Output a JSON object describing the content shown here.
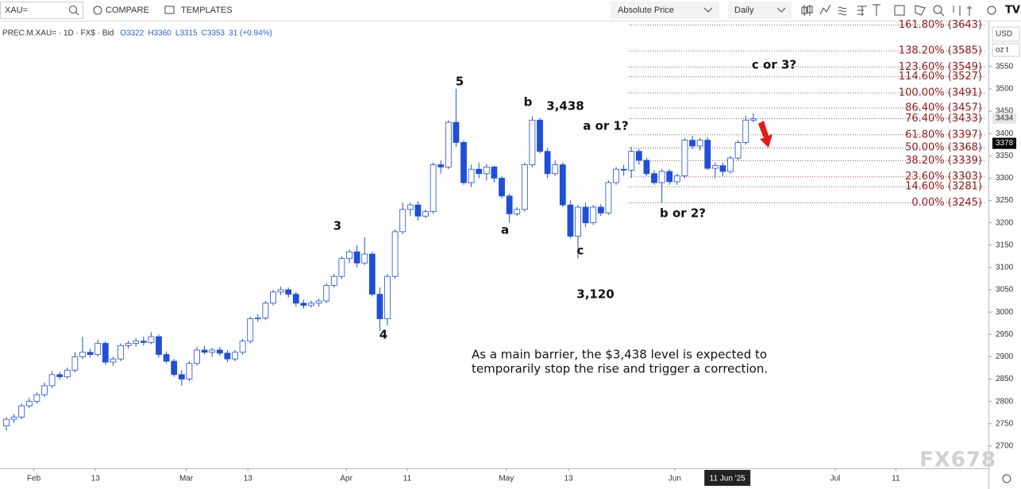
{
  "toolbar": {
    "search": "XAU=",
    "compare": "COMPARE",
    "templates": "TEMPLATES",
    "price_mode": "Absolute Price",
    "interval": "Daily"
  },
  "chart_data": {
    "type": "candlestick",
    "legend": {
      "symbol": "PREC.M.XAU= · 1D · FX$ · Bid",
      "values": [
        "O3322",
        "H3360",
        "L3315",
        "C3353",
        "31 (+0.94%)"
      ]
    },
    "currency": "USD",
    "unit": "oz t",
    "up_color": "#ffffff",
    "down_color": "#1f4fd6",
    "outline_color": "#1f4fd6",
    "xlim": [
      -0.833,
      128.85
    ],
    "ylim": [
      2650,
      3651
    ],
    "yticks": [
      2700,
      2750,
      2800,
      2850,
      2900,
      2950,
      3000,
      3050,
      3100,
      3150,
      3200,
      3250,
      3300,
      3350,
      3400,
      3450,
      3500,
      3550
    ],
    "xticks": [
      {
        "value": 3.6,
        "label": "Feb"
      },
      {
        "value": 11.7,
        "label": "13"
      },
      {
        "value": 23.6,
        "label": "Mar"
      },
      {
        "value": 31.7,
        "label": "13"
      },
      {
        "value": 44.6,
        "label": "Apr"
      },
      {
        "value": 52.6,
        "label": "11"
      },
      {
        "value": 65.6,
        "label": "May"
      },
      {
        "value": 73.75,
        "label": "13"
      },
      {
        "value": 87.7,
        "label": "Jun"
      },
      {
        "value": 108.75,
        "label": "Jul"
      },
      {
        "value": 116.7,
        "label": "11"
      }
    ],
    "x_cursor": {
      "value": 94.6,
      "label": "11 Jun '25"
    },
    "price_markers": [
      3434,
      3378
    ],
    "ohlc": [
      [
        2745,
        2765,
        2735,
        2760
      ],
      [
        2760,
        2772,
        2752,
        2765
      ],
      [
        2765,
        2795,
        2760,
        2790
      ],
      [
        2790,
        2808,
        2785,
        2800
      ],
      [
        2800,
        2820,
        2795,
        2815
      ],
      [
        2815,
        2842,
        2810,
        2835
      ],
      [
        2835,
        2868,
        2830,
        2860
      ],
      [
        2860,
        2866,
        2848,
        2855
      ],
      [
        2855,
        2876,
        2850,
        2870
      ],
      [
        2870,
        2910,
        2865,
        2900
      ],
      [
        2900,
        2945,
        2895,
        2910
      ],
      [
        2910,
        2918,
        2898,
        2905
      ],
      [
        2905,
        2938,
        2900,
        2930
      ],
      [
        2930,
        2935,
        2882,
        2888
      ],
      [
        2888,
        2900,
        2880,
        2895
      ],
      [
        2895,
        2930,
        2890,
        2925
      ],
      [
        2925,
        2936,
        2918,
        2930
      ],
      [
        2930,
        2942,
        2922,
        2935
      ],
      [
        2935,
        2945,
        2925,
        2932
      ],
      [
        2932,
        2955,
        2928,
        2945
      ],
      [
        2945,
        2950,
        2898,
        2905
      ],
      [
        2905,
        2912,
        2885,
        2890
      ],
      [
        2890,
        2895,
        2855,
        2860
      ],
      [
        2860,
        2870,
        2835,
        2850
      ],
      [
        2850,
        2890,
        2845,
        2885
      ],
      [
        2885,
        2922,
        2880,
        2915
      ],
      [
        2915,
        2925,
        2905,
        2910
      ],
      [
        2910,
        2920,
        2900,
        2915
      ],
      [
        2915,
        2922,
        2902,
        2908
      ],
      [
        2908,
        2915,
        2888,
        2895
      ],
      [
        2895,
        2915,
        2890,
        2910
      ],
      [
        2910,
        2940,
        2905,
        2935
      ],
      [
        2935,
        2990,
        2930,
        2985
      ],
      [
        2985,
        2995,
        2978,
        2987
      ],
      [
        2987,
        3025,
        2982,
        3020
      ],
      [
        3020,
        3050,
        3015,
        3045
      ],
      [
        3045,
        3057,
        3038,
        3050
      ],
      [
        3050,
        3055,
        3032,
        3040
      ],
      [
        3040,
        3045,
        3012,
        3020
      ],
      [
        3020,
        3028,
        3008,
        3015
      ],
      [
        3015,
        3026,
        3010,
        3020
      ],
      [
        3020,
        3030,
        3012,
        3025
      ],
      [
        3025,
        3065,
        3020,
        3060
      ],
      [
        3060,
        3085,
        3055,
        3080
      ],
      [
        3080,
        3125,
        3075,
        3120
      ],
      [
        3120,
        3140,
        3110,
        3135
      ],
      [
        3135,
        3150,
        3100,
        3110
      ],
      [
        3110,
        3168,
        3105,
        3130
      ],
      [
        3130,
        3135,
        3035,
        3040
      ],
      [
        3040,
        3055,
        2958,
        2985
      ],
      [
        2985,
        3085,
        2970,
        3080
      ],
      [
        3080,
        3185,
        3075,
        3180
      ],
      [
        3180,
        3245,
        3175,
        3230
      ],
      [
        3230,
        3245,
        3215,
        3240
      ],
      [
        3240,
        3248,
        3205,
        3215
      ],
      [
        3215,
        3230,
        3210,
        3225
      ],
      [
        3225,
        3335,
        3220,
        3330
      ],
      [
        3330,
        3340,
        3310,
        3325
      ],
      [
        3325,
        3430,
        3320,
        3425
      ],
      [
        3425,
        3500,
        3370,
        3380
      ],
      [
        3380,
        3385,
        3285,
        3290
      ],
      [
        3290,
        3330,
        3280,
        3320
      ],
      [
        3320,
        3335,
        3300,
        3310
      ],
      [
        3310,
        3332,
        3295,
        3325
      ],
      [
        3325,
        3328,
        3290,
        3300
      ],
      [
        3300,
        3305,
        3255,
        3260
      ],
      [
        3260,
        3265,
        3200,
        3220
      ],
      [
        3220,
        3235,
        3215,
        3230
      ],
      [
        3230,
        3335,
        3225,
        3330
      ],
      [
        3330,
        3438,
        3325,
        3430
      ],
      [
        3430,
        3435,
        3355,
        3360
      ],
      [
        3360,
        3368,
        3300,
        3310
      ],
      [
        3310,
        3340,
        3305,
        3330
      ],
      [
        3330,
        3335,
        3235,
        3240
      ],
      [
        3240,
        3250,
        3165,
        3170
      ],
      [
        3170,
        3240,
        3120,
        3235
      ],
      [
        3235,
        3245,
        3190,
        3200
      ],
      [
        3200,
        3240,
        3195,
        3235
      ],
      [
        3235,
        3242,
        3215,
        3222
      ],
      [
        3222,
        3295,
        3218,
        3290
      ],
      [
        3290,
        3325,
        3285,
        3320
      ],
      [
        3320,
        3330,
        3305,
        3318
      ],
      [
        3318,
        3370,
        3300,
        3360
      ],
      [
        3360,
        3365,
        3330,
        3340
      ],
      [
        3340,
        3345,
        3305,
        3310
      ],
      [
        3310,
        3318,
        3285,
        3290
      ],
      [
        3290,
        3320,
        3245,
        3315
      ],
      [
        3315,
        3320,
        3285,
        3292
      ],
      [
        3292,
        3310,
        3285,
        3305
      ],
      [
        3305,
        3390,
        3300,
        3385
      ],
      [
        3385,
        3395,
        3365,
        3372
      ],
      [
        3372,
        3390,
        3362,
        3385
      ],
      [
        3385,
        3392,
        3318,
        3322
      ],
      [
        3322,
        3335,
        3300,
        3328
      ],
      [
        3328,
        3335,
        3305,
        3315
      ],
      [
        3315,
        3350,
        3310,
        3345
      ],
      [
        3345,
        3385,
        3340,
        3380
      ],
      [
        3380,
        3440,
        3375,
        3430
      ],
      [
        3430,
        3445,
        3425,
        3433
      ]
    ],
    "fib_color": "#8e1c1c",
    "fib_levels": [
      {
        "label": "161.80% (3643)",
        "value": 3643
      },
      {
        "label": "138.20% (3585)",
        "value": 3585
      },
      {
        "label": "123.60% (3549)",
        "value": 3549
      },
      {
        "label": "114.60% (3527)",
        "value": 3527
      },
      {
        "label": "100.00% (3491)",
        "value": 3491
      },
      {
        "label": "86.40% (3457)",
        "value": 3457
      },
      {
        "label": "76.40% (3433)",
        "value": 3433
      },
      {
        "label": "61.80% (3397)",
        "value": 3397
      },
      {
        "label": "50.00% (3368)",
        "value": 3368
      },
      {
        "label": "38.20% (3339)",
        "value": 3339
      },
      {
        "label": "23.60% (3303)",
        "value": 3303
      },
      {
        "label": "14.60% (3281)",
        "value": 3281
      },
      {
        "label": "0.00% (3245)",
        "value": 3245
      }
    ],
    "annotations": [
      "5",
      "b",
      "3,438",
      "a or 1?",
      "3",
      "a",
      "c",
      "3,120",
      "4",
      "b or 2?",
      "c or 3?"
    ],
    "note": [
      "As a main barrier, the $3,438 level is expected to",
      "temporarily stop the rise and trigger a correction."
    ],
    "watermark": "FX678"
  }
}
